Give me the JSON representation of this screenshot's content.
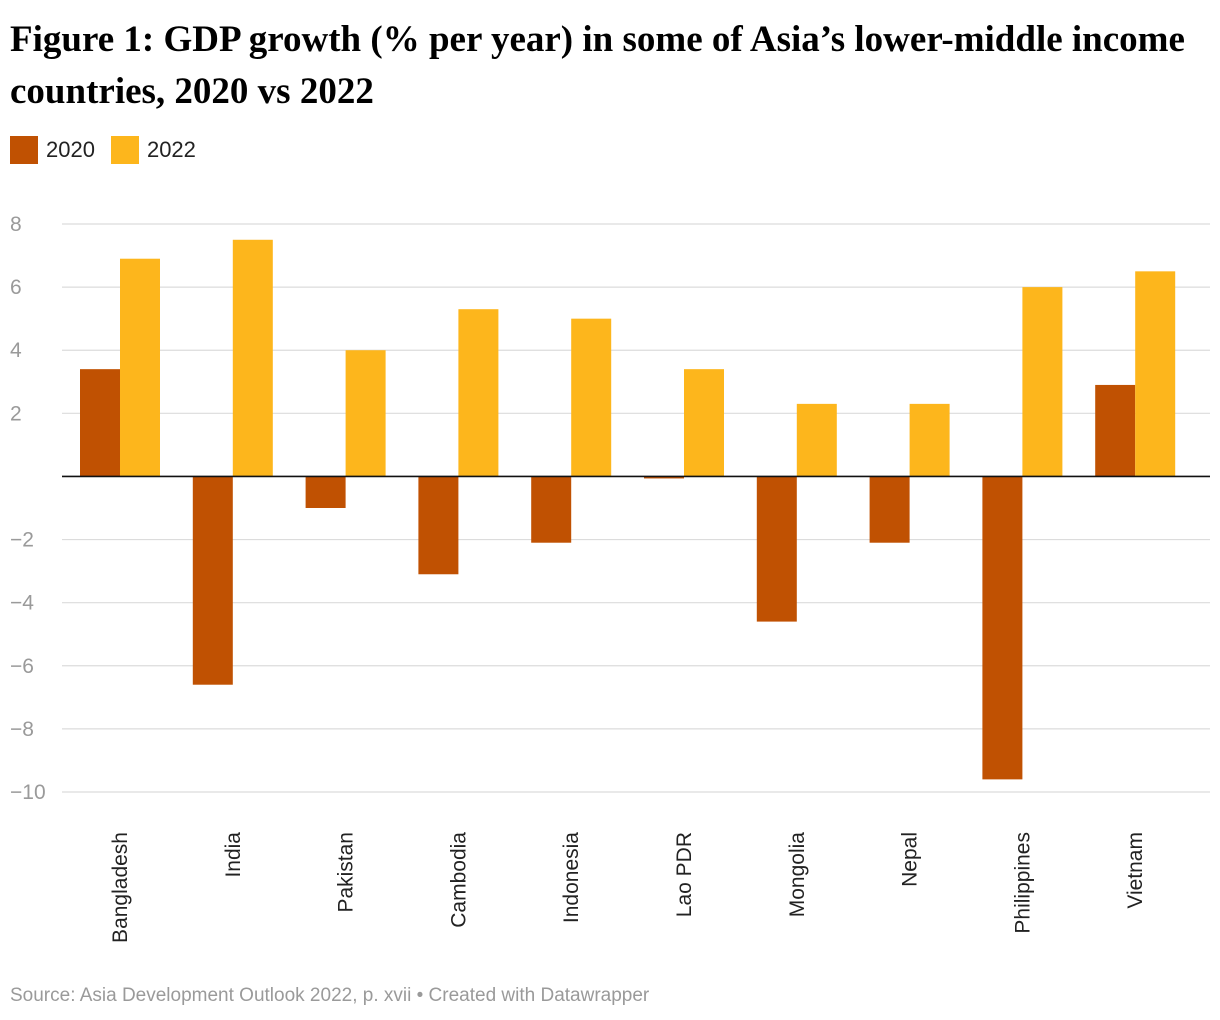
{
  "header": {
    "title": "Figure 1: GDP growth (% per year) in some of Asia’s lower-middle income countries, 2020 vs 2022"
  },
  "legend": {
    "items": [
      {
        "label": "2020",
        "color": "#c05102"
      },
      {
        "label": "2022",
        "color": "#fdb61c"
      }
    ]
  },
  "footer": {
    "source": "Source: Asia Development Outlook 2022, p. xvii • Created with Datawrapper"
  },
  "chart_data": {
    "type": "bar",
    "categories": [
      "Bangladesh",
      "India",
      "Pakistan",
      "Cambodia",
      "Indonesia",
      "Lao PDR",
      "Mongolia",
      "Nepal",
      "Philippines",
      "Vietnam"
    ],
    "series": [
      {
        "name": "2020",
        "color": "#c05102",
        "values": [
          3.4,
          -6.6,
          -1.0,
          -3.1,
          -2.1,
          -0.05,
          -4.6,
          -2.1,
          -9.6,
          2.9
        ]
      },
      {
        "name": "2022",
        "color": "#fdb61c",
        "values": [
          6.9,
          7.5,
          4.0,
          5.3,
          5.0,
          3.4,
          2.3,
          2.3,
          6.0,
          6.5
        ]
      }
    ],
    "yticks": [
      8,
      6,
      4,
      2,
      -2,
      -4,
      -6,
      -8,
      -10
    ],
    "ytick_labels": [
      "8",
      "6",
      "4",
      "2",
      "−2",
      "−4",
      "−6",
      "−8",
      "−10"
    ],
    "ylim": [
      -10,
      8
    ],
    "grid": true,
    "legend_position": "top-left"
  }
}
